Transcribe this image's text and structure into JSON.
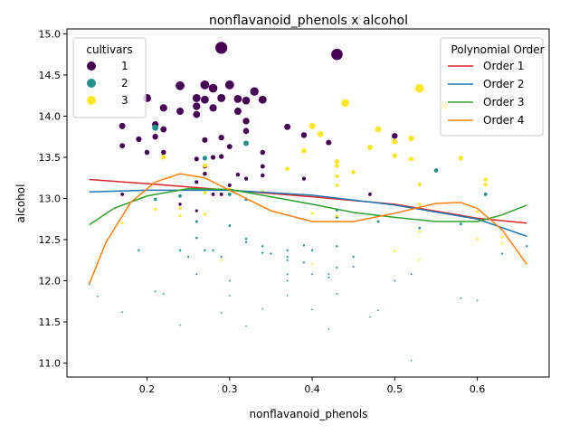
{
  "chart_data": {
    "type": "scatter",
    "title": "nonflavanoid_phenols x alcohol",
    "xlabel": "nonflavanoid_phenols",
    "ylabel": "alcohol",
    "xlim": [
      0.103,
      0.687
    ],
    "ylim": [
      10.83,
      15.06
    ],
    "x_ticks": [
      0.2,
      0.3,
      0.4,
      0.5,
      0.6
    ],
    "x_tick_labels": [
      "0.2",
      "0.3",
      "0.4",
      "0.5",
      "0.6"
    ],
    "y_ticks": [
      11.0,
      11.5,
      12.0,
      12.5,
      13.0,
      13.5,
      14.0,
      14.5,
      15.0
    ],
    "y_tick_labels": [
      "11.0",
      "11.5",
      "12.0",
      "12.5",
      "13.0",
      "13.5",
      "14.0",
      "14.5",
      "15.0"
    ],
    "grid": false,
    "size_encodes": "alcohol",
    "legend_cultivars": {
      "title": "cultivars",
      "placement": "top-left",
      "entries": [
        {
          "label": "1",
          "color": "#440154"
        },
        {
          "label": "2",
          "color": "#21918c"
        },
        {
          "label": "3",
          "color": "#fde725"
        }
      ]
    },
    "legend_order": {
      "title": "Polynomial Order",
      "placement": "top-right",
      "entries": [
        {
          "label": "Order 1",
          "color": "#d62728"
        },
        {
          "label": "Order 2",
          "color": "#1f77b4"
        },
        {
          "label": "Order 3",
          "color": "#2ca02c"
        },
        {
          "label": "Order 4",
          "color": "#ff7f0e"
        }
      ]
    },
    "series": [
      {
        "name": "1",
        "color": "#440154",
        "points": [
          [
            0.29,
            14.83
          ],
          [
            0.43,
            14.75
          ],
          [
            0.24,
            14.37
          ],
          [
            0.27,
            14.38
          ],
          [
            0.3,
            14.38
          ],
          [
            0.28,
            14.34
          ],
          [
            0.33,
            14.3
          ],
          [
            0.26,
            14.22
          ],
          [
            0.2,
            14.22
          ],
          [
            0.29,
            14.22
          ],
          [
            0.31,
            14.21
          ],
          [
            0.34,
            14.2
          ],
          [
            0.27,
            14.2
          ],
          [
            0.32,
            14.19
          ],
          [
            0.22,
            14.1
          ],
          [
            0.26,
            14.12
          ],
          [
            0.28,
            14.1
          ],
          [
            0.31,
            14.06
          ],
          [
            0.24,
            14.06
          ],
          [
            0.26,
            14.02
          ],
          [
            0.21,
            13.9
          ],
          [
            0.17,
            13.88
          ],
          [
            0.32,
            13.94
          ],
          [
            0.37,
            13.87
          ],
          [
            0.22,
            13.84
          ],
          [
            0.32,
            13.82
          ],
          [
            0.39,
            13.77
          ],
          [
            0.5,
            13.76
          ],
          [
            0.21,
            13.75
          ],
          [
            0.29,
            13.74
          ],
          [
            0.19,
            13.72
          ],
          [
            0.27,
            13.71
          ],
          [
            0.42,
            13.68
          ],
          [
            0.17,
            13.64
          ],
          [
            0.3,
            13.63
          ],
          [
            0.2,
            13.56
          ],
          [
            0.22,
            13.56
          ],
          [
            0.34,
            13.56
          ],
          [
            0.26,
            13.48
          ],
          [
            0.28,
            13.5
          ],
          [
            0.29,
            13.51
          ],
          [
            0.27,
            13.39
          ],
          [
            0.34,
            13.39
          ],
          [
            0.27,
            13.3
          ],
          [
            0.31,
            13.29
          ],
          [
            0.34,
            13.28
          ],
          [
            0.39,
            13.24
          ],
          [
            0.32,
            13.24
          ],
          [
            0.26,
            13.2
          ],
          [
            0.3,
            13.16
          ],
          [
            0.17,
            13.05
          ],
          [
            0.28,
            13.05
          ],
          [
            0.29,
            13.05
          ],
          [
            0.47,
            13.05
          ],
          [
            0.24,
            12.93
          ],
          [
            0.26,
            12.85
          ]
        ]
      },
      {
        "name": "2",
        "color": "#21918c",
        "points": [
          [
            0.21,
            13.86
          ],
          [
            0.32,
            13.67
          ],
          [
            0.55,
            13.34
          ],
          [
            0.27,
            13.49
          ],
          [
            0.21,
            12.99
          ],
          [
            0.24,
            13.03
          ],
          [
            0.3,
            13.05
          ],
          [
            0.61,
            13.05
          ],
          [
            0.32,
            12.99
          ],
          [
            0.43,
            12.86
          ],
          [
            0.26,
            12.72
          ],
          [
            0.43,
            12.77
          ],
          [
            0.48,
            12.72
          ],
          [
            0.58,
            12.69
          ],
          [
            0.3,
            12.67
          ],
          [
            0.53,
            12.64
          ],
          [
            0.26,
            12.52
          ],
          [
            0.32,
            12.51
          ],
          [
            0.32,
            12.47
          ],
          [
            0.34,
            12.42
          ],
          [
            0.39,
            12.43
          ],
          [
            0.43,
            12.42
          ],
          [
            0.66,
            12.42
          ],
          [
            0.19,
            12.37
          ],
          [
            0.24,
            12.37
          ],
          [
            0.27,
            12.37
          ],
          [
            0.28,
            12.37
          ],
          [
            0.34,
            12.34
          ],
          [
            0.37,
            12.37
          ],
          [
            0.4,
            12.37
          ],
          [
            0.35,
            12.33
          ],
          [
            0.63,
            12.33
          ],
          [
            0.25,
            12.29
          ],
          [
            0.29,
            12.29
          ],
          [
            0.37,
            12.29
          ],
          [
            0.45,
            12.29
          ],
          [
            0.37,
            12.25
          ],
          [
            0.39,
            12.22
          ],
          [
            0.14,
            12.21
          ],
          [
            0.43,
            12.16
          ],
          [
            0.45,
            12.17
          ],
          [
            0.26,
            12.08
          ],
          [
            0.37,
            12.08
          ],
          [
            0.4,
            12.08
          ],
          [
            0.42,
            12.08
          ],
          [
            0.52,
            12.08
          ],
          [
            0.42,
            12.04
          ],
          [
            0.3,
            12.0
          ],
          [
            0.37,
            12.0
          ],
          [
            0.5,
            12.0
          ],
          [
            0.13,
            11.96
          ],
          [
            0.21,
            11.87
          ],
          [
            0.22,
            11.84
          ],
          [
            0.3,
            11.82
          ],
          [
            0.14,
            11.81
          ],
          [
            0.37,
            11.82
          ],
          [
            0.43,
            11.84
          ],
          [
            0.58,
            11.79
          ],
          [
            0.6,
            11.76
          ],
          [
            0.34,
            11.66
          ],
          [
            0.4,
            11.65
          ],
          [
            0.48,
            11.64
          ],
          [
            0.17,
            11.62
          ],
          [
            0.29,
            11.61
          ],
          [
            0.47,
            11.56
          ],
          [
            0.24,
            11.46
          ],
          [
            0.32,
            11.45
          ],
          [
            0.42,
            11.41
          ],
          [
            0.52,
            11.03
          ]
        ]
      },
      {
        "name": "3",
        "color": "#fde725",
        "points": [
          [
            0.53,
            14.34
          ],
          [
            0.44,
            14.16
          ],
          [
            0.56,
            14.13
          ],
          [
            0.4,
            13.88
          ],
          [
            0.41,
            13.78
          ],
          [
            0.48,
            13.84
          ],
          [
            0.52,
            13.73
          ],
          [
            0.5,
            13.69
          ],
          [
            0.47,
            13.62
          ],
          [
            0.39,
            13.58
          ],
          [
            0.5,
            13.52
          ],
          [
            0.43,
            13.45
          ],
          [
            0.52,
            13.48
          ],
          [
            0.58,
            13.49
          ],
          [
            0.22,
            13.5
          ],
          [
            0.43,
            13.4
          ],
          [
            0.27,
            13.4
          ],
          [
            0.37,
            13.36
          ],
          [
            0.45,
            13.32
          ],
          [
            0.43,
            13.27
          ],
          [
            0.61,
            13.23
          ],
          [
            0.61,
            13.17
          ],
          [
            0.53,
            13.17
          ],
          [
            0.43,
            13.16
          ],
          [
            0.3,
            13.11
          ],
          [
            0.34,
            13.08
          ],
          [
            0.27,
            13.07
          ],
          [
            0.53,
            12.93
          ],
          [
            0.21,
            12.87
          ],
          [
            0.24,
            12.88
          ],
          [
            0.4,
            12.82
          ],
          [
            0.27,
            12.81
          ],
          [
            0.24,
            12.79
          ],
          [
            0.43,
            12.79
          ],
          [
            0.6,
            12.84
          ],
          [
            0.17,
            12.7
          ],
          [
            0.53,
            12.6
          ],
          [
            0.63,
            12.53
          ],
          [
            0.6,
            12.51
          ],
          [
            0.63,
            12.45
          ],
          [
            0.5,
            12.36
          ],
          [
            0.29,
            12.25
          ],
          [
            0.53,
            12.25
          ],
          [
            0.4,
            12.2
          ]
        ]
      }
    ],
    "fit_lines": [
      {
        "name": "Order 1",
        "color": "#d62728",
        "points": [
          [
            0.13,
            13.23
          ],
          [
            0.2,
            13.18
          ],
          [
            0.3,
            13.1
          ],
          [
            0.4,
            13.02
          ],
          [
            0.5,
            12.93
          ],
          [
            0.6,
            12.76
          ],
          [
            0.66,
            12.7
          ]
        ]
      },
      {
        "name": "Order 2",
        "color": "#1f77b4",
        "points": [
          [
            0.13,
            13.08
          ],
          [
            0.2,
            13.1
          ],
          [
            0.3,
            13.1
          ],
          [
            0.4,
            13.04
          ],
          [
            0.5,
            12.92
          ],
          [
            0.6,
            12.75
          ],
          [
            0.66,
            12.54
          ]
        ]
      },
      {
        "name": "Order 3",
        "color": "#2ca02c",
        "points": [
          [
            0.13,
            12.68
          ],
          [
            0.16,
            12.88
          ],
          [
            0.2,
            13.03
          ],
          [
            0.25,
            13.12
          ],
          [
            0.3,
            13.11
          ],
          [
            0.35,
            13.02
          ],
          [
            0.4,
            12.93
          ],
          [
            0.45,
            12.83
          ],
          [
            0.5,
            12.77
          ],
          [
            0.55,
            12.72
          ],
          [
            0.6,
            12.72
          ],
          [
            0.63,
            12.8
          ],
          [
            0.66,
            12.92
          ]
        ]
      },
      {
        "name": "Order 4",
        "color": "#ff7f0e",
        "points": [
          [
            0.13,
            11.96
          ],
          [
            0.15,
            12.46
          ],
          [
            0.18,
            12.95
          ],
          [
            0.21,
            13.2
          ],
          [
            0.24,
            13.3
          ],
          [
            0.27,
            13.25
          ],
          [
            0.3,
            13.1
          ],
          [
            0.35,
            12.85
          ],
          [
            0.4,
            12.72
          ],
          [
            0.45,
            12.72
          ],
          [
            0.5,
            12.82
          ],
          [
            0.55,
            12.94
          ],
          [
            0.58,
            12.95
          ],
          [
            0.6,
            12.88
          ],
          [
            0.63,
            12.62
          ],
          [
            0.66,
            12.2
          ]
        ]
      }
    ]
  }
}
